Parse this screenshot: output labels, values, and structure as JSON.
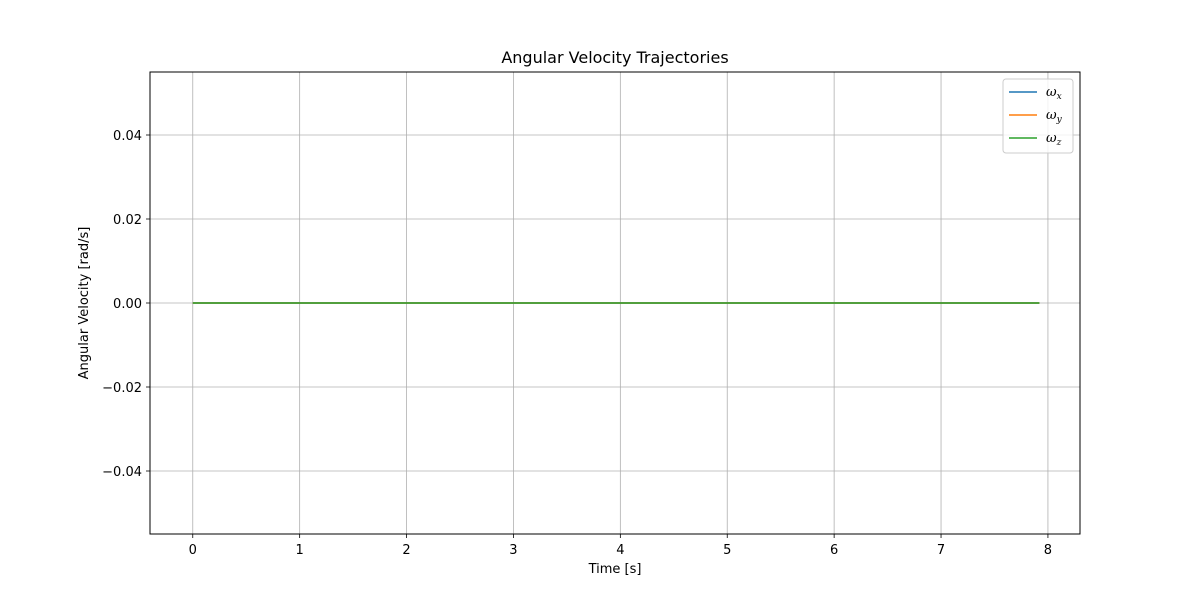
{
  "chart_data": {
    "type": "line",
    "title": "Angular Velocity Trajectories",
    "xlabel": "Time [s]",
    "ylabel": "Angular Velocity [rad/s]",
    "xlim": [
      -0.4,
      8.3
    ],
    "ylim": [
      -0.055,
      0.055
    ],
    "xticks": [
      0,
      1,
      2,
      3,
      4,
      5,
      6,
      7,
      8
    ],
    "xtick_labels": [
      "0",
      "1",
      "2",
      "3",
      "4",
      "5",
      "6",
      "7",
      "8"
    ],
    "yticks": [
      -0.04,
      -0.02,
      0.0,
      0.02,
      0.04
    ],
    "ytick_labels": [
      "−0.04",
      "−0.02",
      "0.00",
      "0.02",
      "0.04"
    ],
    "grid": true,
    "legend_position": "top-right",
    "series": [
      {
        "name": "ω",
        "subscript": "x",
        "color": "#1f77b4",
        "x": [
          0,
          7.92
        ],
        "y": [
          0,
          0
        ]
      },
      {
        "name": "ω",
        "subscript": "y",
        "color": "#ff7f0e",
        "x": [
          0,
          7.92
        ],
        "y": [
          0,
          0
        ]
      },
      {
        "name": "ω",
        "subscript": "z",
        "color": "#2ca02c",
        "x": [
          0,
          7.92
        ],
        "y": [
          0,
          0
        ]
      }
    ]
  }
}
